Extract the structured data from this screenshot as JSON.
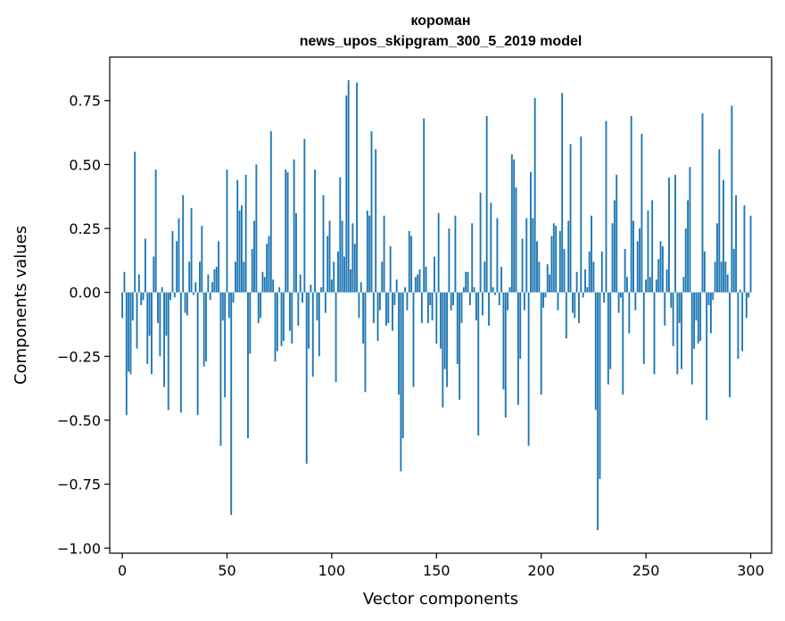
{
  "chart_data": {
    "type": "bar",
    "title_lines": [
      "короман",
      "news_upos_skipgram_300_5_2019 model"
    ],
    "xlabel": "Vector components",
    "ylabel": "Components values",
    "xlim": [
      -6,
      310
    ],
    "ylim": [
      -1.02,
      0.92
    ],
    "x_ticks": [
      0,
      50,
      100,
      150,
      200,
      250,
      300
    ],
    "x_tick_labels": [
      "0",
      "50",
      "100",
      "150",
      "200",
      "250",
      "300"
    ],
    "y_ticks": [
      -1.0,
      -0.75,
      -0.5,
      -0.25,
      0.0,
      0.25,
      0.5,
      0.75
    ],
    "y_tick_labels": [
      "−1.00",
      "−0.75",
      "−0.50",
      "−0.25",
      "0.00",
      "0.25",
      "0.50",
      "0.75"
    ],
    "grid": false,
    "bar_color": "#1f77b4",
    "values": [
      -0.1,
      0.08,
      -0.48,
      -0.31,
      -0.32,
      -0.11,
      0.55,
      -0.22,
      0.07,
      -0.05,
      -0.03,
      0.21,
      -0.28,
      -0.17,
      -0.32,
      0.14,
      0.48,
      -0.12,
      -0.25,
      0.02,
      -0.37,
      -0.17,
      -0.46,
      -0.03,
      0.24,
      -0.02,
      0.2,
      0.29,
      -0.47,
      0.38,
      -0.08,
      -0.09,
      0.12,
      0.33,
      -0.01,
      0.04,
      -0.48,
      0.12,
      0.26,
      -0.29,
      -0.27,
      0.07,
      -0.03,
      0.04,
      0.09,
      0.1,
      0.2,
      -0.6,
      -0.11,
      -0.41,
      0.48,
      -0.1,
      -0.87,
      -0.04,
      0.12,
      0.44,
      0.32,
      0.34,
      0.12,
      0.46,
      -0.57,
      -0.24,
      0.17,
      0.28,
      0.5,
      -0.12,
      -0.1,
      0.08,
      0.06,
      0.19,
      0.22,
      0.63,
      0.05,
      -0.27,
      -0.23,
      0.02,
      -0.21,
      -0.19,
      0.48,
      0.47,
      -0.15,
      -0.2,
      0.52,
      0.31,
      -0.13,
      0.07,
      -0.04,
      0.6,
      -0.67,
      -0.22,
      0.03,
      -0.33,
      0.48,
      -0.11,
      -0.25,
      0.02,
      0.38,
      -0.08,
      0.22,
      0.28,
      0.05,
      0.12,
      -0.35,
      0.16,
      0.45,
      0.28,
      0.14,
      0.77,
      0.83,
      0.09,
      0.27,
      0.19,
      0.82,
      -0.1,
      0.04,
      -0.2,
      -0.39,
      0.32,
      0.3,
      0.63,
      -0.12,
      0.56,
      -0.19,
      -0.07,
      0.12,
      0.3,
      -0.13,
      -0.12,
      0.18,
      -0.15,
      -0.05,
      0.05,
      -0.4,
      -0.7,
      -0.57,
      0.02,
      -0.07,
      0.24,
      0.22,
      -0.37,
      0.06,
      0.07,
      0.09,
      -0.12,
      0.68,
      0.1,
      -0.12,
      -0.05,
      -0.11,
      0.14,
      -0.2,
      0.31,
      -0.22,
      -0.45,
      -0.3,
      -0.37,
      0.25,
      -0.07,
      -0.05,
      0.3,
      -0.28,
      -0.42,
      -0.12,
      0.02,
      0.08,
      0.08,
      -0.05,
      0.27,
      0.02,
      -0.11,
      -0.56,
      0.39,
      -0.09,
      0.12,
      0.69,
      -0.13,
      0.35,
      0.02,
      -0.01,
      0.29,
      -0.05,
      0.1,
      -0.38,
      -0.49,
      -0.07,
      0.02,
      0.54,
      0.52,
      0.41,
      -0.44,
      -0.26,
      0.21,
      -0.07,
      0.29,
      -0.6,
      0.47,
      0.29,
      0.76,
      0.2,
      0.12,
      -0.4,
      -0.06,
      -0.02,
      0.11,
      0.07,
      0.22,
      0.27,
      0.26,
      -0.07,
      0.24,
      0.78,
      0.17,
      -0.18,
      0.28,
      0.58,
      -0.08,
      -0.1,
      0.08,
      -0.12,
      0.61,
      -0.02,
      0.09,
      0.02,
      0.16,
      0.3,
      0.12,
      -0.46,
      -0.93,
      -0.73,
      0.16,
      -0.04,
      0.67,
      -0.36,
      -0.3,
      0.27,
      0.36,
      0.46,
      -0.08,
      -0.02,
      -0.4,
      0.17,
      0.06,
      -0.16,
      0.69,
      0.28,
      -0.07,
      0.2,
      0.25,
      0.62,
      -0.28,
      0.05,
      0.32,
      0.06,
      0.36,
      -0.32,
      0.05,
      0.13,
      0.2,
      0.18,
      -0.13,
      0.09,
      0.45,
      -0.06,
      -0.21,
      0.46,
      -0.32,
      -0.12,
      -0.3,
      0.06,
      0.25,
      0.36,
      0.49,
      -0.36,
      -0.22,
      -0.11,
      -0.2,
      -0.19,
      0.7,
      0.16,
      -0.5,
      -0.05,
      -0.16,
      -0.03,
      0.12,
      0.27,
      0.56,
      0.12,
      0.44,
      0.12,
      0.07,
      -0.41,
      0.73,
      0.17,
      0.38,
      -0.26,
      0.01,
      -0.23,
      0.34,
      -0.1,
      -0.02,
      0.3
    ]
  }
}
